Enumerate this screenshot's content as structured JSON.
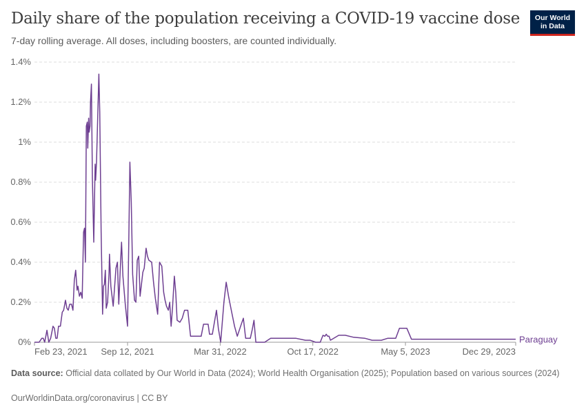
{
  "header": {
    "title": "Daily share of the population receiving a COVID-19 vaccine dose",
    "subtitle": "7-day rolling average. All doses, including boosters, are counted individually.",
    "logo_line1": "Our World",
    "logo_line2": "in Data"
  },
  "footer": {
    "source_label": "Data source:",
    "source_text": "Official data collated by Our World in Data (2024); World Health Organisation (2025); Population based on various sources (2024)",
    "url_text": "OurWorldinData.org/coronavirus | CC BY"
  },
  "colors": {
    "series": "#6d3e91",
    "grid": "#dddddd",
    "axis": "#999999",
    "logo_bg": "#002147",
    "logo_accent": "#ce261e"
  },
  "chart_data": {
    "type": "line",
    "title": "Daily share of the population receiving a COVID-19 vaccine dose",
    "subtitle": "7-day rolling average. All doses, including boosters, are counted individually.",
    "xlabel": "",
    "ylabel": "",
    "x_axis_type": "date",
    "xlim": [
      "2021-02-23",
      "2023-12-29"
    ],
    "ylim": [
      0,
      1.4
    ],
    "y_unit": "%",
    "x_tick_labels": [
      "Feb 23, 2021",
      "Sep 12, 2021",
      "Mar 31, 2022",
      "Oct 17, 2022",
      "May 5, 2023",
      "Dec 29, 2023"
    ],
    "x_tick_dates": [
      "2021-02-23",
      "2021-09-12",
      "2022-03-31",
      "2022-10-17",
      "2023-05-05",
      "2023-12-29"
    ],
    "y_ticks": [
      0,
      0.2,
      0.4,
      0.6,
      0.8,
      1,
      1.2,
      1.4
    ],
    "y_tick_labels": [
      "0%",
      "0.2%",
      "0.4%",
      "0.6%",
      "0.8%",
      "1%",
      "1.2%",
      "1.4%"
    ],
    "grid": "horizontal dashed",
    "legend": "end-of-line label",
    "series": [
      {
        "name": "Paraguay",
        "points": [
          [
            "2021-02-23",
            0.0
          ],
          [
            "2021-03-05",
            0.0
          ],
          [
            "2021-03-11",
            0.02
          ],
          [
            "2021-03-14",
            0.02
          ],
          [
            "2021-03-17",
            0.0
          ],
          [
            "2021-03-22",
            0.06
          ],
          [
            "2021-03-26",
            0.0
          ],
          [
            "2021-03-30",
            0.02
          ],
          [
            "2021-04-04",
            0.08
          ],
          [
            "2021-04-07",
            0.07
          ],
          [
            "2021-04-10",
            0.02
          ],
          [
            "2021-04-13",
            0.02
          ],
          [
            "2021-04-16",
            0.08
          ],
          [
            "2021-04-20",
            0.08
          ],
          [
            "2021-04-24",
            0.15
          ],
          [
            "2021-04-27",
            0.16
          ],
          [
            "2021-05-01",
            0.21
          ],
          [
            "2021-05-04",
            0.17
          ],
          [
            "2021-05-07",
            0.16
          ],
          [
            "2021-05-10",
            0.19
          ],
          [
            "2021-05-14",
            0.19
          ],
          [
            "2021-05-17",
            0.16
          ],
          [
            "2021-05-20",
            0.31
          ],
          [
            "2021-05-23",
            0.36
          ],
          [
            "2021-05-26",
            0.26
          ],
          [
            "2021-05-28",
            0.28
          ],
          [
            "2021-05-31",
            0.23
          ],
          [
            "2021-06-03",
            0.25
          ],
          [
            "2021-06-06",
            0.22
          ],
          [
            "2021-06-09",
            0.55
          ],
          [
            "2021-06-11",
            0.57
          ],
          [
            "2021-06-13",
            0.4
          ],
          [
            "2021-06-15",
            1.08
          ],
          [
            "2021-06-17",
            1.1
          ],
          [
            "2021-06-18",
            0.97
          ],
          [
            "2021-06-20",
            1.12
          ],
          [
            "2021-06-21",
            1.05
          ],
          [
            "2021-06-23",
            1.08
          ],
          [
            "2021-06-24",
            1.2
          ],
          [
            "2021-06-26",
            1.29
          ],
          [
            "2021-06-28",
            0.82
          ],
          [
            "2021-07-01",
            0.5
          ],
          [
            "2021-07-04",
            0.89
          ],
          [
            "2021-07-05",
            0.81
          ],
          [
            "2021-07-07",
            0.9
          ],
          [
            "2021-07-12",
            1.34
          ],
          [
            "2021-07-14",
            1.15
          ],
          [
            "2021-07-17",
            0.55
          ],
          [
            "2021-07-20",
            0.14
          ],
          [
            "2021-07-22",
            0.28
          ],
          [
            "2021-07-24",
            0.29
          ],
          [
            "2021-07-26",
            0.36
          ],
          [
            "2021-07-28",
            0.17
          ],
          [
            "2021-07-31",
            0.2
          ],
          [
            "2021-08-03",
            0.35
          ],
          [
            "2021-08-04",
            0.44
          ],
          [
            "2021-08-07",
            0.28
          ],
          [
            "2021-08-12",
            0.18
          ],
          [
            "2021-08-18",
            0.37
          ],
          [
            "2021-08-21",
            0.4
          ],
          [
            "2021-08-24",
            0.19
          ],
          [
            "2021-08-28",
            0.41
          ],
          [
            "2021-08-30",
            0.5
          ],
          [
            "2021-09-02",
            0.33
          ],
          [
            "2021-09-07",
            0.19
          ],
          [
            "2021-09-12",
            0.08
          ],
          [
            "2021-09-15",
            0.55
          ],
          [
            "2021-09-17",
            0.9
          ],
          [
            "2021-09-20",
            0.7
          ],
          [
            "2021-09-23",
            0.34
          ],
          [
            "2021-09-27",
            0.21
          ],
          [
            "2021-09-30",
            0.2
          ],
          [
            "2021-10-03",
            0.41
          ],
          [
            "2021-10-06",
            0.43
          ],
          [
            "2021-10-09",
            0.23
          ],
          [
            "2021-10-12",
            0.29
          ],
          [
            "2021-10-15",
            0.35
          ],
          [
            "2021-10-18",
            0.37
          ],
          [
            "2021-10-22",
            0.47
          ],
          [
            "2021-10-25",
            0.43
          ],
          [
            "2021-10-28",
            0.41
          ],
          [
            "2021-11-03",
            0.4
          ],
          [
            "2021-11-07",
            0.3
          ],
          [
            "2021-11-11",
            0.22
          ],
          [
            "2021-11-16",
            0.14
          ],
          [
            "2021-11-20",
            0.4
          ],
          [
            "2021-11-25",
            0.38
          ],
          [
            "2021-11-29",
            0.25
          ],
          [
            "2021-12-02",
            0.21
          ],
          [
            "2021-12-05",
            0.18
          ],
          [
            "2021-12-09",
            0.16
          ],
          [
            "2021-12-12",
            0.2
          ],
          [
            "2021-12-15",
            0.08
          ],
          [
            "2021-12-18",
            0.17
          ],
          [
            "2021-12-22",
            0.33
          ],
          [
            "2021-12-25",
            0.25
          ],
          [
            "2021-12-28",
            0.11
          ],
          [
            "2022-01-03",
            0.1
          ],
          [
            "2022-01-08",
            0.12
          ],
          [
            "2022-01-13",
            0.16
          ],
          [
            "2022-01-20",
            0.16
          ],
          [
            "2022-01-26",
            0.03
          ],
          [
            "2022-02-08",
            0.03
          ],
          [
            "2022-02-18",
            0.03
          ],
          [
            "2022-02-23",
            0.09
          ],
          [
            "2022-03-05",
            0.09
          ],
          [
            "2022-03-08",
            0.04
          ],
          [
            "2022-03-14",
            0.04
          ],
          [
            "2022-03-20",
            0.12
          ],
          [
            "2022-03-23",
            0.16
          ],
          [
            "2022-03-27",
            0.07
          ],
          [
            "2022-04-01",
            0.0
          ],
          [
            "2022-04-08",
            0.2
          ],
          [
            "2022-04-13",
            0.3
          ],
          [
            "2022-04-18",
            0.23
          ],
          [
            "2022-04-24",
            0.16
          ],
          [
            "2022-05-01",
            0.08
          ],
          [
            "2022-05-07",
            0.03
          ],
          [
            "2022-05-14",
            0.08
          ],
          [
            "2022-05-20",
            0.12
          ],
          [
            "2022-05-25",
            0.02
          ],
          [
            "2022-06-04",
            0.02
          ],
          [
            "2022-06-08",
            0.06
          ],
          [
            "2022-06-12",
            0.11
          ],
          [
            "2022-06-16",
            0.0
          ],
          [
            "2022-07-05",
            0.0
          ],
          [
            "2022-07-18",
            0.02
          ],
          [
            "2022-07-28",
            0.02
          ],
          [
            "2022-08-15",
            0.02
          ],
          [
            "2022-09-10",
            0.02
          ],
          [
            "2022-10-01",
            0.01
          ],
          [
            "2022-10-11",
            0.01
          ],
          [
            "2022-10-23",
            0.0
          ],
          [
            "2022-11-02",
            0.0
          ],
          [
            "2022-11-08",
            0.035
          ],
          [
            "2022-11-12",
            0.03
          ],
          [
            "2022-11-15",
            0.04
          ],
          [
            "2022-11-18",
            0.03
          ],
          [
            "2022-11-21",
            0.03
          ],
          [
            "2022-11-24",
            0.01
          ],
          [
            "2022-12-12",
            0.035
          ],
          [
            "2022-12-26",
            0.035
          ],
          [
            "2023-01-13",
            0.025
          ],
          [
            "2023-02-06",
            0.02
          ],
          [
            "2023-02-22",
            0.01
          ],
          [
            "2023-03-14",
            0.01
          ],
          [
            "2023-03-28",
            0.02
          ],
          [
            "2023-04-14",
            0.02
          ],
          [
            "2023-04-22",
            0.07
          ],
          [
            "2023-05-08",
            0.07
          ],
          [
            "2023-05-18",
            0.015
          ],
          [
            "2023-12-29",
            0.015
          ]
        ]
      }
    ]
  }
}
